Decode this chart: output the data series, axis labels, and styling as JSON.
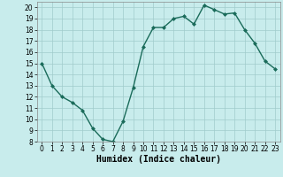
{
  "x": [
    0,
    1,
    2,
    3,
    4,
    5,
    6,
    7,
    8,
    9,
    10,
    11,
    12,
    13,
    14,
    15,
    16,
    17,
    18,
    19,
    20,
    21,
    22,
    23
  ],
  "y": [
    15,
    13,
    12,
    11.5,
    10.8,
    9.2,
    8.2,
    8.0,
    9.8,
    12.8,
    16.5,
    18.2,
    18.2,
    19.0,
    19.2,
    18.5,
    20.2,
    19.8,
    19.4,
    19.5,
    18.0,
    16.8,
    15.2,
    14.5
  ],
  "line_color": "#1a6b5a",
  "marker": "D",
  "marker_size": 2.0,
  "bg_color": "#c8ecec",
  "grid_color": "#a0cccc",
  "xlabel": "Humidex (Indice chaleur)",
  "ylim": [
    8,
    20.5
  ],
  "xlim": [
    -0.5,
    23.5
  ],
  "yticks": [
    8,
    9,
    10,
    11,
    12,
    13,
    14,
    15,
    16,
    17,
    18,
    19,
    20
  ],
  "xticks": [
    0,
    1,
    2,
    3,
    4,
    5,
    6,
    7,
    8,
    9,
    10,
    11,
    12,
    13,
    14,
    15,
    16,
    17,
    18,
    19,
    20,
    21,
    22,
    23
  ],
  "tick_fontsize": 5.5,
  "xlabel_fontsize": 7.0,
  "linewidth": 1.0
}
